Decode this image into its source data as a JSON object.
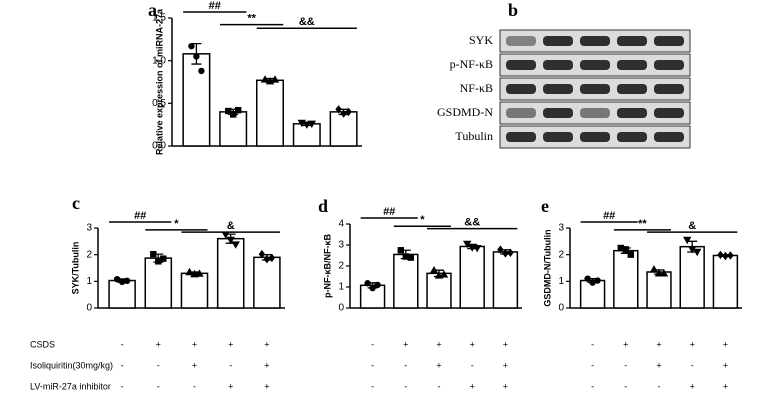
{
  "chart_data": [
    {
      "type": "bar",
      "panel": "a",
      "ylabel": "Relative expression of miRNA-27a",
      "values": [
        1.08,
        0.4,
        0.77,
        0.26,
        0.4
      ],
      "errors": [
        0.12,
        0.03,
        0.02,
        0.02,
        0.03
      ],
      "points": [
        [
          1.17,
          1.05,
          0.88
        ],
        [
          0.41,
          0.37,
          0.42
        ],
        [
          0.78,
          0.76,
          0.78
        ],
        [
          0.27,
          0.25,
          0.26
        ],
        [
          0.43,
          0.38,
          0.4
        ]
      ],
      "ylim": [
        0,
        1.5
      ],
      "yticks": [
        {
          "value": 0,
          "label": "0.0"
        },
        {
          "value": 0.5,
          "label": "0.5"
        },
        {
          "value": 1,
          "label": "1.0"
        },
        {
          "value": 1.5,
          "label": "1.5"
        }
      ],
      "annotations": [
        {
          "text": "##",
          "from": 0,
          "to": 1
        },
        {
          "text": "**",
          "from": 1,
          "to": 2
        },
        {
          "text": "&&",
          "from": 2,
          "to": 4
        }
      ]
    },
    {
      "type": "bar",
      "panel": "c",
      "ylabel": "SYK/Tubulin",
      "values": [
        1.03,
        1.87,
        1.3,
        2.6,
        1.9
      ],
      "errors": [
        0.06,
        0.15,
        0.05,
        0.17,
        0.1
      ],
      "points": [
        [
          1.08,
          0.98,
          1.02
        ],
        [
          2.02,
          1.75,
          1.85
        ],
        [
          1.35,
          1.27,
          1.29
        ],
        [
          2.75,
          2.55,
          2.38
        ],
        [
          2.02,
          1.83,
          1.88
        ]
      ],
      "ylim": [
        0,
        3
      ],
      "yticks": [
        0,
        1,
        2,
        3
      ],
      "annotations": [
        {
          "text": "##",
          "from": 0,
          "to": 1
        },
        {
          "text": "*",
          "from": 1,
          "to": 2
        },
        {
          "text": "&",
          "from": 2,
          "to": 4
        }
      ]
    },
    {
      "type": "bar",
      "panel": "d",
      "ylabel": "p-NF-κB/NF-κB",
      "values": [
        1.08,
        2.55,
        1.65,
        2.93,
        2.67
      ],
      "errors": [
        0.12,
        0.2,
        0.15,
        0.1,
        0.1
      ],
      "points": [
        [
          1.18,
          0.95,
          1.1
        ],
        [
          2.75,
          2.45,
          2.4
        ],
        [
          1.8,
          1.55,
          1.6
        ],
        [
          3.05,
          2.88,
          2.85
        ],
        [
          2.78,
          2.6,
          2.63
        ]
      ],
      "ylim": [
        0,
        4
      ],
      "yticks": [
        0,
        1,
        2,
        3,
        4
      ],
      "annotations": [
        {
          "text": "##",
          "from": 0,
          "to": 1
        },
        {
          "text": "*",
          "from": 1,
          "to": 2
        },
        {
          "text": "&&",
          "from": 2,
          "to": 4
        }
      ]
    },
    {
      "type": "bar",
      "panel": "e",
      "ylabel": "GSDMD-N/Tubulin",
      "values": [
        1.03,
        2.15,
        1.35,
        2.3,
        1.97
      ],
      "errors": [
        0.07,
        0.1,
        0.08,
        0.2,
        0.03
      ],
      "points": [
        [
          1.1,
          0.95,
          1.03
        ],
        [
          2.25,
          2.2,
          2.0
        ],
        [
          1.45,
          1.3,
          1.3
        ],
        [
          2.55,
          2.2,
          2.1
        ],
        [
          1.99,
          1.95,
          1.97
        ]
      ],
      "ylim": [
        0,
        3
      ],
      "yticks": [
        0,
        1,
        2,
        3
      ],
      "annotations": [
        {
          "text": "##",
          "from": 0,
          "to": 1
        },
        {
          "text": "**",
          "from": 1,
          "to": 2
        },
        {
          "text": "&",
          "from": 2,
          "to": 4
        }
      ]
    }
  ],
  "blot": {
    "panel": "b",
    "rows": [
      "SYK",
      "p-NF-κB",
      "NF-κB",
      "GSDMD-N",
      "Tubulin"
    ]
  },
  "conditions": {
    "rows": [
      {
        "label": "CSDS",
        "signs": [
          "-",
          "+",
          "+",
          "+",
          "+"
        ]
      },
      {
        "label": "Isoliquiritin(30mg/kg)",
        "signs": [
          "-",
          "-",
          "+",
          "-",
          "+"
        ]
      },
      {
        "label": "LV-miR-27a inhibitor",
        "signs": [
          "-",
          "-",
          "-",
          "+",
          "+"
        ]
      }
    ]
  }
}
